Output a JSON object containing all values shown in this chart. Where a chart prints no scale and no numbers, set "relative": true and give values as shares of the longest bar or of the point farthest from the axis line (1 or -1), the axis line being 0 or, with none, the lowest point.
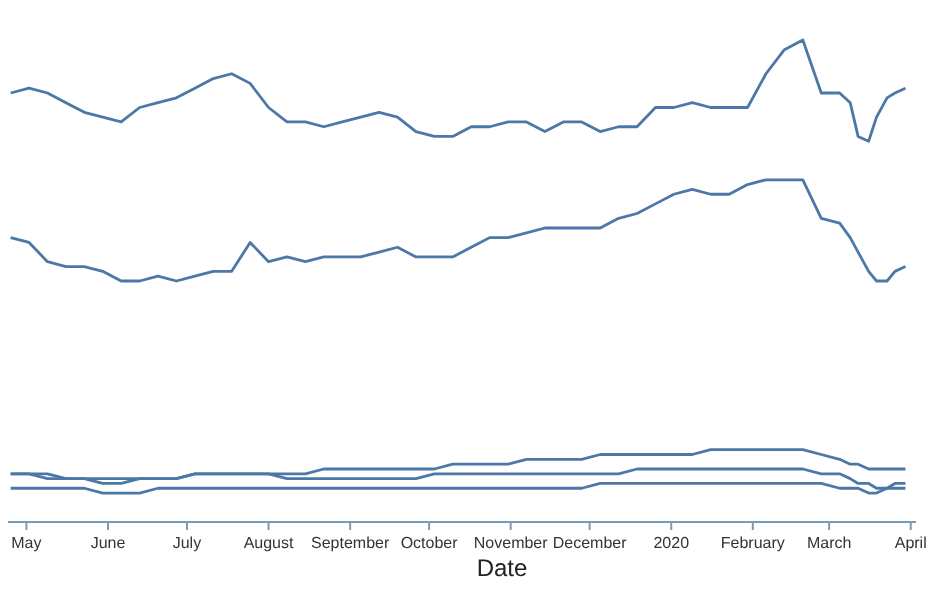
{
  "chart_data": {
    "type": "line",
    "relative": true,
    "xlabel": "Date",
    "xlim": [
      "2019-04-24",
      "2020-04-03"
    ],
    "xticks": [
      {
        "value": "2019-05-01",
        "label": "May"
      },
      {
        "value": "2019-06-01",
        "label": "June"
      },
      {
        "value": "2019-07-01",
        "label": "July"
      },
      {
        "value": "2019-08-01",
        "label": "August"
      },
      {
        "value": "2019-09-01",
        "label": "September"
      },
      {
        "value": "2019-10-01",
        "label": "October"
      },
      {
        "value": "2019-11-01",
        "label": "November"
      },
      {
        "value": "2019-12-01",
        "label": "December"
      },
      {
        "value": "2020-01-01",
        "label": "2020"
      },
      {
        "value": "2020-02-01",
        "label": "February"
      },
      {
        "value": "2020-03-01",
        "label": "March"
      },
      {
        "value": "2020-04-01",
        "label": "April"
      }
    ],
    "x": [
      "2019-04-25",
      "2019-05-02",
      "2019-05-09",
      "2019-05-16",
      "2019-05-23",
      "2019-05-30",
      "2019-06-06",
      "2019-06-13",
      "2019-06-20",
      "2019-06-27",
      "2019-07-04",
      "2019-07-11",
      "2019-07-18",
      "2019-07-25",
      "2019-08-01",
      "2019-08-08",
      "2019-08-15",
      "2019-08-22",
      "2019-08-29",
      "2019-09-05",
      "2019-09-12",
      "2019-09-19",
      "2019-09-26",
      "2019-10-03",
      "2019-10-10",
      "2019-10-17",
      "2019-10-24",
      "2019-10-31",
      "2019-11-07",
      "2019-11-14",
      "2019-11-21",
      "2019-11-28",
      "2019-12-05",
      "2019-12-12",
      "2019-12-19",
      "2019-12-26",
      "2020-01-02",
      "2020-01-09",
      "2020-01-16",
      "2020-01-23",
      "2020-01-30",
      "2020-02-06",
      "2020-02-13",
      "2020-02-20",
      "2020-02-27",
      "2020-03-05",
      "2020-03-09",
      "2020-03-12",
      "2020-03-16",
      "2020-03-19",
      "2020-03-23",
      "2020-03-26",
      "2020-03-30"
    ],
    "series": [
      {
        "color": "#4c78a8",
        "values": [
          0.89,
          0.9,
          0.89,
          0.87,
          0.85,
          0.84,
          0.83,
          0.86,
          0.87,
          0.88,
          0.9,
          0.92,
          0.93,
          0.91,
          0.86,
          0.83,
          0.83,
          0.82,
          0.83,
          0.84,
          0.85,
          0.84,
          0.81,
          0.8,
          0.8,
          0.82,
          0.82,
          0.83,
          0.83,
          0.81,
          0.83,
          0.83,
          0.81,
          0.82,
          0.82,
          0.86,
          0.86,
          0.87,
          0.86,
          0.86,
          0.86,
          0.93,
          0.98,
          1.0,
          0.89,
          0.89,
          0.87,
          0.8,
          0.79,
          0.84,
          0.88,
          0.89,
          0.9
        ]
      },
      {
        "color": "#4c78a8",
        "values": [
          0.59,
          0.58,
          0.54,
          0.53,
          0.53,
          0.52,
          0.5,
          0.5,
          0.51,
          0.5,
          0.51,
          0.52,
          0.52,
          0.58,
          0.54,
          0.55,
          0.54,
          0.55,
          0.55,
          0.55,
          0.56,
          0.57,
          0.55,
          0.55,
          0.55,
          0.57,
          0.59,
          0.59,
          0.6,
          0.61,
          0.61,
          0.61,
          0.61,
          0.63,
          0.64,
          0.66,
          0.68,
          0.69,
          0.68,
          0.68,
          0.7,
          0.71,
          0.71,
          0.71,
          0.63,
          0.62,
          0.59,
          0.56,
          0.52,
          0.5,
          0.5,
          0.52,
          0.53
        ]
      },
      {
        "color": "#4c78a8",
        "values": [
          0.1,
          0.1,
          0.1,
          0.09,
          0.09,
          0.09,
          0.09,
          0.09,
          0.09,
          0.09,
          0.1,
          0.1,
          0.1,
          0.1,
          0.1,
          0.1,
          0.1,
          0.11,
          0.11,
          0.11,
          0.11,
          0.11,
          0.11,
          0.11,
          0.12,
          0.12,
          0.12,
          0.12,
          0.13,
          0.13,
          0.13,
          0.13,
          0.14,
          0.14,
          0.14,
          0.14,
          0.14,
          0.14,
          0.15,
          0.15,
          0.15,
          0.15,
          0.15,
          0.15,
          0.14,
          0.13,
          0.12,
          0.12,
          0.11,
          0.11,
          0.11,
          0.11,
          0.11
        ]
      },
      {
        "color": "#4c78a8",
        "values": [
          0.1,
          0.1,
          0.09,
          0.09,
          0.09,
          0.08,
          0.08,
          0.09,
          0.09,
          0.09,
          0.1,
          0.1,
          0.1,
          0.1,
          0.1,
          0.09,
          0.09,
          0.09,
          0.09,
          0.09,
          0.09,
          0.09,
          0.09,
          0.1,
          0.1,
          0.1,
          0.1,
          0.1,
          0.1,
          0.1,
          0.1,
          0.1,
          0.1,
          0.1,
          0.11,
          0.11,
          0.11,
          0.11,
          0.11,
          0.11,
          0.11,
          0.11,
          0.11,
          0.11,
          0.1,
          0.1,
          0.09,
          0.08,
          0.08,
          0.07,
          0.07,
          0.08,
          0.08
        ]
      },
      {
        "color": "#4c78a8",
        "values": [
          0.07,
          0.07,
          0.07,
          0.07,
          0.07,
          0.06,
          0.06,
          0.06,
          0.07,
          0.07,
          0.07,
          0.07,
          0.07,
          0.07,
          0.07,
          0.07,
          0.07,
          0.07,
          0.07,
          0.07,
          0.07,
          0.07,
          0.07,
          0.07,
          0.07,
          0.07,
          0.07,
          0.07,
          0.07,
          0.07,
          0.07,
          0.07,
          0.08,
          0.08,
          0.08,
          0.08,
          0.08,
          0.08,
          0.08,
          0.08,
          0.08,
          0.08,
          0.08,
          0.08,
          0.08,
          0.07,
          0.07,
          0.07,
          0.06,
          0.06,
          0.07,
          0.07,
          0.07
        ]
      }
    ]
  }
}
